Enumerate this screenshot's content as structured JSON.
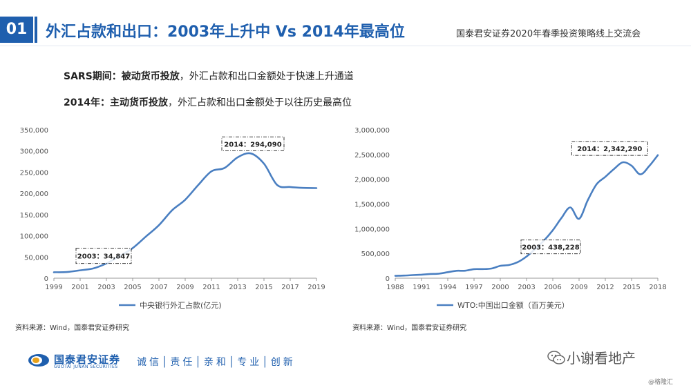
{
  "header": {
    "section_number": "01",
    "title": "外汇占款和出口：2003年上升中 Vs 2014年最高位",
    "brand_text": "国泰君安证券2020年春季投资策略线上交流会"
  },
  "points": [
    {
      "label": "SARS期间：被动货币投放",
      "text": "，外汇占款和出口金额处于快速上升通道"
    },
    {
      "label": "2014年：主动货币投放",
      "text": "，外汇占款和出口金额处于以往历史最高位"
    }
  ],
  "chart_data": [
    {
      "type": "line",
      "x": [
        1999,
        2000,
        2001,
        2002,
        2003,
        2004,
        2005,
        2006,
        2007,
        2008,
        2009,
        2010,
        2011,
        2012,
        2013,
        2014,
        2015,
        2016,
        2017,
        2018,
        2019
      ],
      "series": [
        {
          "name": "中央银行外汇占款(亿元)",
          "values": [
            14000,
            14500,
            18500,
            23000,
            34847,
            52000,
            71000,
            98000,
            125000,
            160000,
            185000,
            220000,
            252000,
            260000,
            285000,
            294090,
            270000,
            220000,
            215000,
            213000,
            212500
          ],
          "color": "#4a7fc1"
        }
      ],
      "xticks": [
        1999,
        2001,
        2003,
        2005,
        2007,
        2009,
        2011,
        2013,
        2015,
        2017,
        2019
      ],
      "yticks": [
        0,
        50000,
        100000,
        150000,
        200000,
        250000,
        300000,
        350000
      ],
      "ytick_labels": [
        "0",
        "50,000",
        "100,000",
        "150,000",
        "200,000",
        "250,000",
        "300,000",
        "350,000"
      ],
      "ylim": [
        0,
        350000
      ],
      "xlim": [
        1999,
        2019
      ],
      "annotations": [
        {
          "text": "2003：34,847",
          "x": 2003,
          "y": 34847
        },
        {
          "text": "2014：294,090",
          "x": 2014,
          "y": 294090
        }
      ],
      "legend": "bottom",
      "source": "资料来源：Wind，国泰君安证券研究"
    },
    {
      "type": "line",
      "x": [
        1988,
        1989,
        1990,
        1991,
        1992,
        1993,
        1994,
        1995,
        1996,
        1997,
        1998,
        1999,
        2000,
        2001,
        2002,
        2003,
        2004,
        2005,
        2006,
        2007,
        2008,
        2009,
        2010,
        2011,
        2012,
        2013,
        2014,
        2015,
        2016,
        2017,
        2018
      ],
      "series": [
        {
          "name": "WTO:中国出口金额（百万美元）",
          "values": [
            47500,
            52500,
            62100,
            71800,
            84900,
            91700,
            121000,
            148800,
            151000,
            182800,
            183700,
            194900,
            249200,
            266100,
            325600,
            438228,
            593300,
            762000,
            969000,
            1220000,
            1430000,
            1200000,
            1578000,
            1898000,
            2049000,
            2209000,
            2342290,
            2273000,
            2098000,
            2263000,
            2487000
          ],
          "color": "#4a7fc1"
        }
      ],
      "xticks": [
        1988,
        1991,
        1994,
        1997,
        2000,
        2003,
        2006,
        2009,
        2012,
        2015,
        2018
      ],
      "yticks": [
        0,
        500000,
        1000000,
        1500000,
        2000000,
        2500000,
        3000000
      ],
      "ytick_labels": [
        "0",
        "500,000",
        "1,000,000",
        "1,500,000",
        "2,000,000",
        "2,500,000",
        "3,000,000"
      ],
      "ylim": [
        0,
        3000000
      ],
      "xlim": [
        1988,
        2018
      ],
      "annotations": [
        {
          "text": "2003：438,228",
          "x": 2003,
          "y": 438228
        },
        {
          "text": "2014：2,342,290",
          "x": 2014,
          "y": 2342290
        }
      ],
      "legend": "bottom",
      "source": "资料来源：Wind，国泰君安证券研究"
    }
  ],
  "footer": {
    "logo_cn": "国泰君安证券",
    "logo_en": "GUOTAI JUNAN SECURITIES",
    "motto": "诚信│责任│亲和│专业│创新",
    "watermark": "小谢看地产",
    "credit": "@格隆汇"
  },
  "colors": {
    "accent": "#1f5fae",
    "line": "#4a7fc1"
  }
}
